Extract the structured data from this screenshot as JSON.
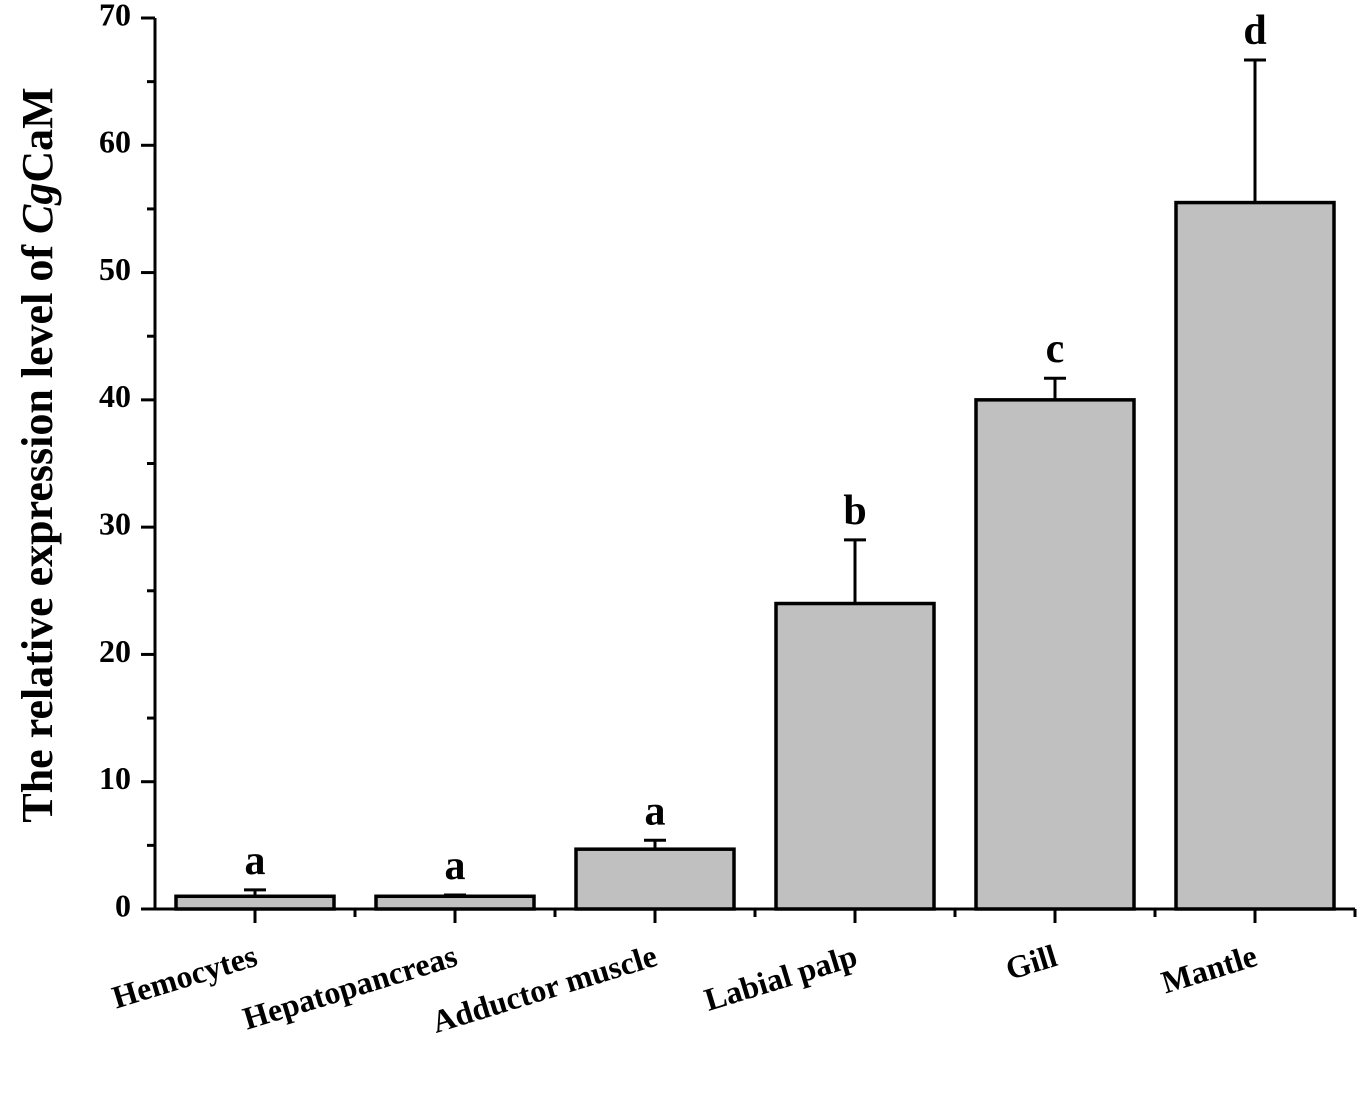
{
  "chart_data": {
    "type": "bar",
    "title": "",
    "xlabel": "",
    "ylabel": {
      "prefix": "The relative expression level of ",
      "italic": "Cg",
      "suffix": "CaM"
    },
    "ylim": [
      0,
      70
    ],
    "yticks": [
      "0",
      "10",
      "20",
      "30",
      "40",
      "50",
      "60",
      "70"
    ],
    "ytick_values": [
      0,
      10,
      20,
      30,
      40,
      50,
      60,
      70
    ],
    "categories": [
      "Hemocytes",
      "Hepatopancreas",
      "Adductor muscle",
      "Labial palp",
      "Gill",
      "Mantle"
    ],
    "values": [
      1.0,
      1.0,
      4.7,
      24.0,
      40.0,
      55.5
    ],
    "errors": [
      0.5,
      0.1,
      0.7,
      5.0,
      1.7,
      11.2
    ],
    "significance": [
      "a",
      "a",
      "a",
      "b",
      "c",
      "d"
    ],
    "bar_color": "#c0c0c0",
    "edge_color": "#000000",
    "grid": false,
    "legend": "none"
  }
}
